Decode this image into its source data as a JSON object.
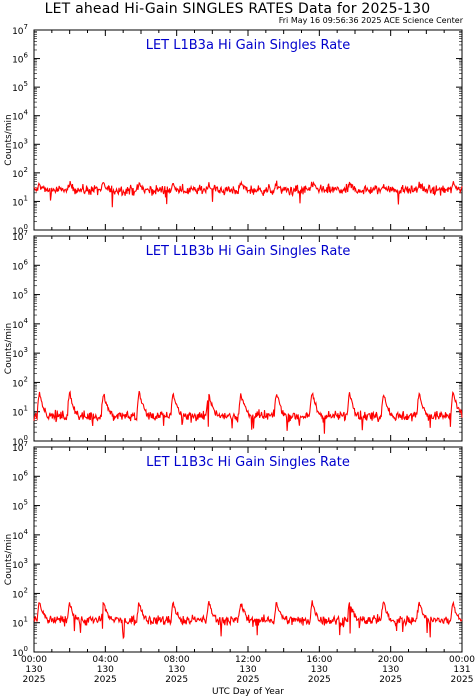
{
  "page": {
    "title": "LET ahead Hi-Gain SINGLES RATES Data for 2025-130",
    "timestamp": "Fri May 16 09:56:36 2025 ACE Science Center",
    "xlabel": "UTC Day of Year",
    "ylabel": "Counts/min"
  },
  "colors": {
    "trace": "#ff0000",
    "panel_title": "#0000cc",
    "axes": "#000000"
  },
  "chart_data": [
    {
      "type": "line",
      "title": "LET L1B3a Hi Gain Singles Rate",
      "yscale": "log",
      "ylim": [
        1,
        10000000
      ],
      "y_tick_labels": [
        "10^0",
        "10^1",
        "10^2",
        "10^3",
        "10^4",
        "10^5",
        "10^6",
        "10^7"
      ],
      "xlim": [
        0,
        24
      ],
      "series": [
        {
          "baseline": 25,
          "spike_peak": 40,
          "spike_hours": [
            0.3,
            2.0,
            3.9,
            5.9,
            7.8,
            9.8,
            11.6,
            13.6,
            15.6,
            17.7,
            19.6,
            21.6,
            23.5
          ]
        }
      ]
    },
    {
      "type": "line",
      "title": "LET L1B3b Hi Gain Singles Rate",
      "yscale": "log",
      "ylim": [
        1,
        10000000
      ],
      "y_tick_labels": [
        "10^0",
        "10^1",
        "10^2",
        "10^3",
        "10^4",
        "10^5",
        "10^6",
        "10^7"
      ],
      "xlim": [
        0,
        24
      ],
      "series": [
        {
          "baseline": 7,
          "spike_peak": 45,
          "spike_hours": [
            0.3,
            2.0,
            3.9,
            5.9,
            7.8,
            9.8,
            11.6,
            13.6,
            15.6,
            17.7,
            19.6,
            21.6,
            23.5
          ]
        }
      ]
    },
    {
      "type": "line",
      "title": "LET L1B3c Hi Gain Singles Rate",
      "yscale": "log",
      "ylim": [
        1,
        10000000
      ],
      "y_tick_labels": [
        "10^0",
        "10^1",
        "10^2",
        "10^3",
        "10^4",
        "10^5",
        "10^6",
        "10^7"
      ],
      "xlim": [
        0,
        24
      ],
      "series": [
        {
          "baseline": 12,
          "spike_peak": 50,
          "spike_hours": [
            0.3,
            2.0,
            3.9,
            5.9,
            7.8,
            9.8,
            11.6,
            13.6,
            15.6,
            17.7,
            19.6,
            21.6,
            23.5
          ]
        }
      ]
    }
  ],
  "x_ticks": [
    {
      "time": "00:00",
      "doy": "130",
      "year": "2025",
      "hour": 0
    },
    {
      "time": "04:00",
      "doy": "130",
      "year": "2025",
      "hour": 4
    },
    {
      "time": "08:00",
      "doy": "130",
      "year": "2025",
      "hour": 8
    },
    {
      "time": "12:00",
      "doy": "130",
      "year": "2025",
      "hour": 12
    },
    {
      "time": "16:00",
      "doy": "130",
      "year": "2025",
      "hour": 16
    },
    {
      "time": "20:00",
      "doy": "130",
      "year": "2025",
      "hour": 20
    },
    {
      "time": "00:00",
      "doy": "131",
      "year": "2025",
      "hour": 24
    }
  ]
}
